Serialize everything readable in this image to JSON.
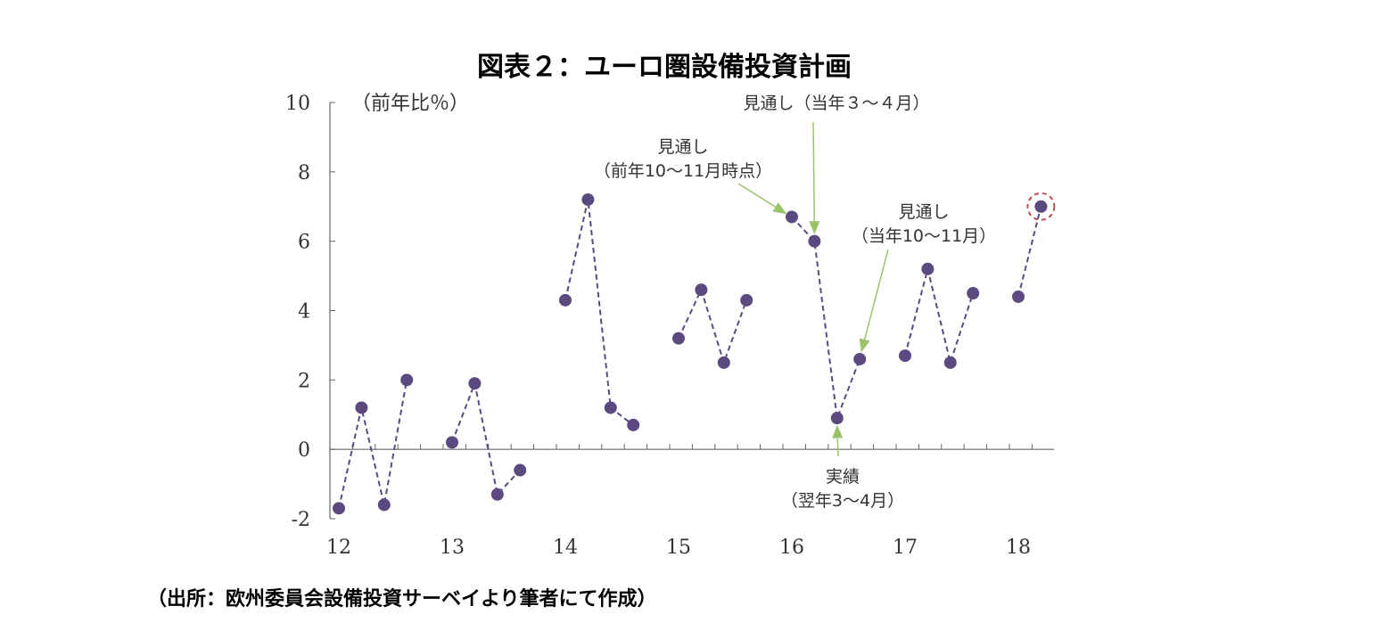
{
  "title": "図表２：ユーロ圏設備投資計画",
  "source": "（出所：欧州委員会設備投資サーベイより筆者にて作成）",
  "colors": {
    "point": "#5b4a80",
    "line": "#5b4a80",
    "arrow": "#9dc36a",
    "highlight": "#c0504d",
    "axis": "#666666"
  },
  "chart_data": {
    "type": "line",
    "ylabel": "（前年比％）",
    "ylim": [
      -2,
      10
    ],
    "yticks": [
      "10",
      "8",
      "6",
      "4",
      "2",
      "0",
      "-2"
    ],
    "xticks": [
      "12",
      "13",
      "14",
      "15",
      "16",
      "17",
      "18"
    ],
    "line_style": "dashed",
    "groups": [
      {
        "year": "12",
        "values": [
          -1.7,
          1.2,
          -1.6,
          2.0
        ]
      },
      {
        "year": "13",
        "values": [
          0.2,
          1.9,
          -1.3,
          -0.6
        ]
      },
      {
        "year": "14",
        "values": [
          4.3,
          7.2,
          1.2,
          0.7
        ]
      },
      {
        "year": "15",
        "values": [
          3.2,
          4.6,
          2.5,
          4.3
        ]
      },
      {
        "year": "16",
        "values": [
          6.7,
          6.0,
          0.9,
          2.6
        ]
      },
      {
        "year": "17",
        "values": [
          2.7,
          5.2,
          2.5,
          4.5
        ]
      },
      {
        "year": "18",
        "values": [
          4.4,
          7.0
        ]
      }
    ],
    "highlighted_point": {
      "year": "18",
      "index": 1,
      "value": 7.0
    },
    "annotations": [
      {
        "id": "prev-year",
        "lines": [
          "見通し",
          "（前年10〜11月時点）"
        ],
        "target": {
          "year": "16",
          "index": 0
        }
      },
      {
        "id": "mar-apr",
        "lines": [
          "見通し（当年３〜４月）"
        ],
        "target": {
          "year": "16",
          "index": 1
        }
      },
      {
        "id": "oct-nov",
        "lines": [
          "見通し",
          "（当年10〜11月）"
        ],
        "target": {
          "year": "16",
          "index": 3
        }
      },
      {
        "id": "actual",
        "lines": [
          "実績",
          "（翌年3〜4月）"
        ],
        "target": {
          "year": "16",
          "index": 2
        }
      }
    ]
  }
}
